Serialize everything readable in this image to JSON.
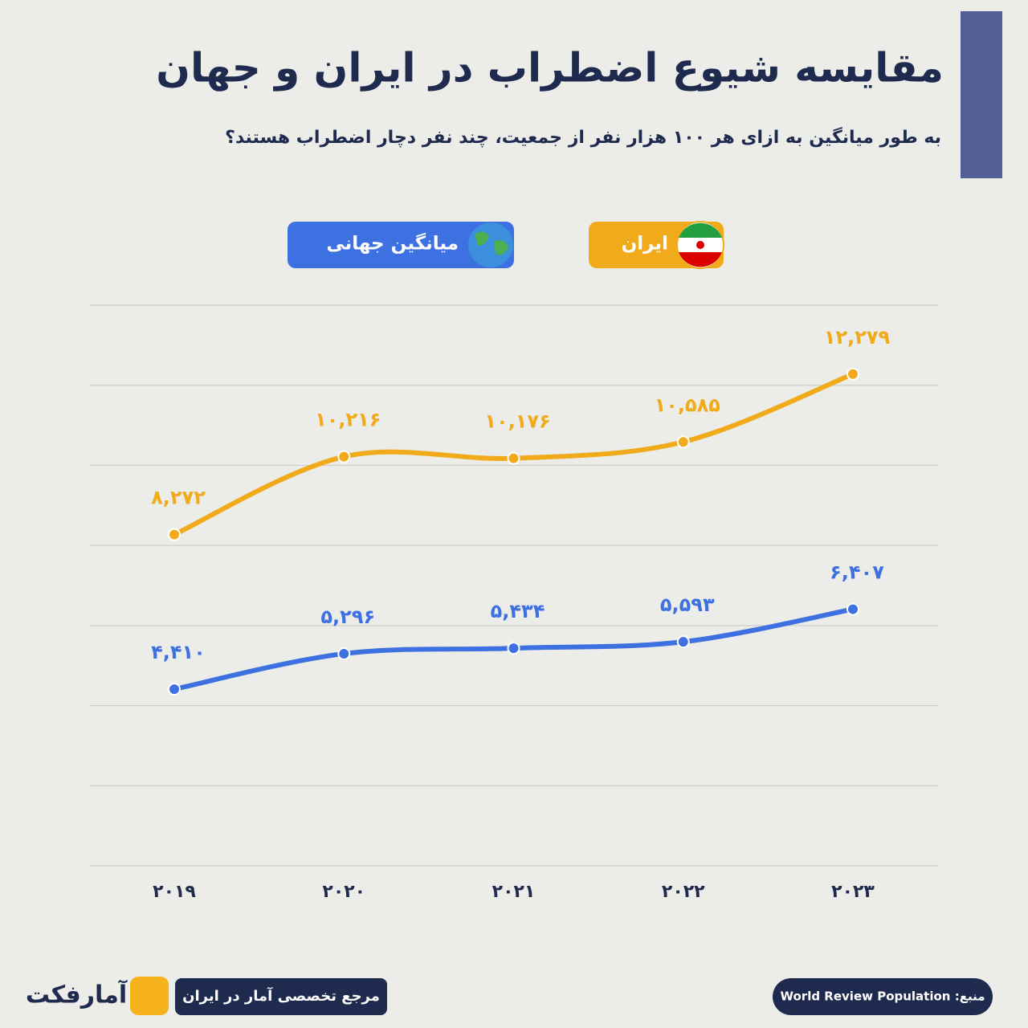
{
  "chart_data": {
    "type": "line",
    "title": "مقایسه شیوع اضطراب در ایران و جهان",
    "subtitle": "به طور میانگین به ازای هر ۱۰۰ هزار نفر از جمعیت، چند نفر دچار اضطراب هستند؟",
    "categories": [
      "۲۰۱۹",
      "۲۰۲۰",
      "۲۰۲۱",
      "۲۰۲۲",
      "۲۰۲۳"
    ],
    "series": [
      {
        "name": "ایران",
        "color": "#f0aa1a",
        "values": [
          8272,
          10216,
          10176,
          10585,
          12279
        ],
        "value_labels": [
          "۸,۲۷۲",
          "۱۰,۲۱۶",
          "۱۰,۱۷۶",
          "۱۰,۵۸۵",
          "۱۲,۲۷۹"
        ]
      },
      {
        "name": "میانگین جهانی",
        "color": "#3d70e0",
        "values": [
          4410,
          5296,
          5434,
          5593,
          6407
        ],
        "value_labels": [
          "۴,۴۱۰",
          "۵,۲۹۶",
          "۵,۴۳۴",
          "۵,۵۹۳",
          "۶,۴۰۷"
        ]
      }
    ],
    "ylim": [
      0,
      14000
    ],
    "yticks": [
      0,
      2000,
      4000,
      6000,
      8000,
      10000,
      12000,
      14000
    ],
    "grid": true,
    "footer": {
      "tagline": "مرجع تخصصی آمار در ایران",
      "source": "منبع: World Review Population",
      "logo": "آمارفکت"
    }
  }
}
